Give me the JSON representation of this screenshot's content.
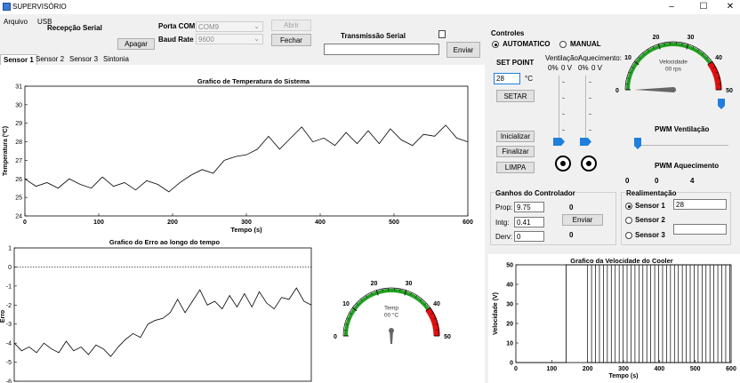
{
  "window": {
    "title": "SUPERVISÓRIO",
    "minimize": "–",
    "maximize": "☐",
    "close": "✕"
  },
  "menu": {
    "arquivo": "Arquivo",
    "usb": "USB"
  },
  "serial": {
    "recepcao_label": "Recepção Serial",
    "apagar": "Apagar",
    "porta_com_label": "Porta COM",
    "porta_com_value": "COM9",
    "baud_rate_label": "Baud Rate",
    "baud_rate_value": "9600",
    "abrir": "Abrir",
    "fechar": "Fechar",
    "transmissao_label": "Transmissão Serial",
    "enviar": "Enviar"
  },
  "tabs": [
    "Sensor 1",
    "Sensor 2",
    "Sensor 3",
    "Sintonia"
  ],
  "controles": {
    "title": "Controles",
    "automatico": "AUTOMATICO",
    "manual": "MANUAL",
    "set_point_label": "SET POINT",
    "set_point_value": "28",
    "unit_c": "°C",
    "setar": "SETAR",
    "ventilacao_label": "Ventilação:",
    "aquecimento_label": "Aquecimento:",
    "vent_pct": "0%",
    "vent_v": "0 V",
    "aquec_pct": "0%",
    "aquec_v": "0 V",
    "inicializar": "Inicializar",
    "finalizar": "Finalizar",
    "limpa": "LIMPA"
  },
  "ganhos": {
    "title": "Ganhos do Controlador",
    "prop_label": "Prop:",
    "prop_value": "9.75",
    "prop_readout": "0",
    "intg_label": "Intg:",
    "intg_value": "0.41",
    "enviar": "Enviar",
    "derv_label": "Derv:",
    "derv_value": "0",
    "derv_readout": "0"
  },
  "realimentacao": {
    "title": "Realimentação",
    "sensor1": "Sensor 1",
    "sensor1_value": "28",
    "sensor2": "Sensor 2",
    "sensor3": "Sensor 3",
    "sensor3_value": ""
  },
  "pwm": {
    "ventilacao_label": "PWM Ventilação",
    "aquecimento_label": "PWM Aquecimento",
    "aquec_tick0": "0",
    "aquec_tick1": "0",
    "aquec_tick4": "4"
  },
  "gauge_velocidade": {
    "title": "Velocidade",
    "readout": "00 rps",
    "ticks": [
      "0",
      "10",
      "20",
      "30",
      "40",
      "50"
    ],
    "value": 0
  },
  "gauge_temp": {
    "title": "Temp",
    "readout": "00 °C",
    "ticks": [
      "0",
      "10",
      "20",
      "30",
      "40",
      "50"
    ],
    "value": 0
  },
  "chart_data": [
    {
      "type": "line",
      "title": "Grafico de Temperatura do Sistema",
      "xlabel": "Tempo (s)",
      "ylabel": "Temperatura (ºC)",
      "xlim": [
        0,
        600
      ],
      "ylim": [
        24,
        31
      ],
      "xticks": [
        "0",
        "100",
        "200",
        "300",
        "400",
        "500",
        "600"
      ],
      "yticks": [
        "24",
        "25",
        "26",
        "27",
        "28",
        "29",
        "30",
        "31"
      ],
      "x": [
        0,
        15,
        30,
        45,
        60,
        75,
        90,
        105,
        120,
        135,
        150,
        165,
        180,
        195,
        210,
        225,
        240,
        255,
        270,
        285,
        300,
        315,
        330,
        345,
        360,
        375,
        390,
        405,
        420,
        435,
        450,
        465,
        480,
        495,
        510,
        525,
        540,
        555,
        570,
        585,
        600
      ],
      "y": [
        26.0,
        25.6,
        25.8,
        25.5,
        26.0,
        25.7,
        25.5,
        26.1,
        25.6,
        25.8,
        25.4,
        25.9,
        25.7,
        25.3,
        25.8,
        26.2,
        26.5,
        26.3,
        27.0,
        27.2,
        27.3,
        27.6,
        28.3,
        27.6,
        28.2,
        28.8,
        28.0,
        28.2,
        27.8,
        28.5,
        27.9,
        28.6,
        27.9,
        28.7,
        28.1,
        27.8,
        28.4,
        28.3,
        28.9,
        28.2,
        28.0
      ]
    },
    {
      "type": "line",
      "title": "Grafico do Erro ao longo do tempo",
      "ylabel": "Erro",
      "xlim": [
        0,
        600
      ],
      "ylim": [
        -6,
        1
      ],
      "yticks": [
        "1",
        "0",
        "-1",
        "-2",
        "-3",
        "-4",
        "-5",
        "-6"
      ],
      "x": [
        0,
        15,
        30,
        45,
        60,
        75,
        90,
        105,
        120,
        135,
        150,
        165,
        180,
        195,
        210,
        225,
        240,
        255,
        270,
        285,
        300,
        315,
        330,
        345,
        360,
        375,
        390,
        405,
        420,
        435,
        450,
        465,
        480,
        495,
        510,
        525,
        540,
        555,
        570,
        585,
        600
      ],
      "y": [
        -4.0,
        -4.4,
        -4.2,
        -4.5,
        -4.0,
        -4.3,
        -4.5,
        -3.9,
        -4.4,
        -4.2,
        -4.6,
        -4.1,
        -4.3,
        -4.7,
        -4.2,
        -3.8,
        -3.5,
        -3.7,
        -3.0,
        -2.8,
        -2.7,
        -2.4,
        -1.7,
        -2.4,
        -1.8,
        -1.2,
        -2.0,
        -1.8,
        -2.2,
        -1.5,
        -2.1,
        -1.4,
        -2.1,
        -1.3,
        -1.9,
        -2.2,
        -1.6,
        -1.7,
        -1.1,
        -1.8,
        -2.0
      ]
    },
    {
      "type": "line",
      "title": "Grafico da Velocidade do Cooler",
      "xlabel": "Tempo (s)",
      "ylabel": "Velocidade (V)",
      "xlim": [
        0,
        600
      ],
      "ylim": [
        0,
        50
      ],
      "xticks": [
        "0",
        "100",
        "200",
        "300",
        "400",
        "500",
        "600"
      ],
      "yticks": [
        "0",
        "10",
        "20",
        "30",
        "40",
        "50"
      ],
      "x": [
        0,
        140,
        140,
        600
      ],
      "y": [
        0,
        0,
        50,
        50
      ],
      "note_pwm_switching_from": 200
    }
  ],
  "colors": {
    "green": "#22a022",
    "red": "#e01010",
    "blue": "#1e7fdc",
    "panel": "#ffffff",
    "bg": "#f0f0f0"
  }
}
